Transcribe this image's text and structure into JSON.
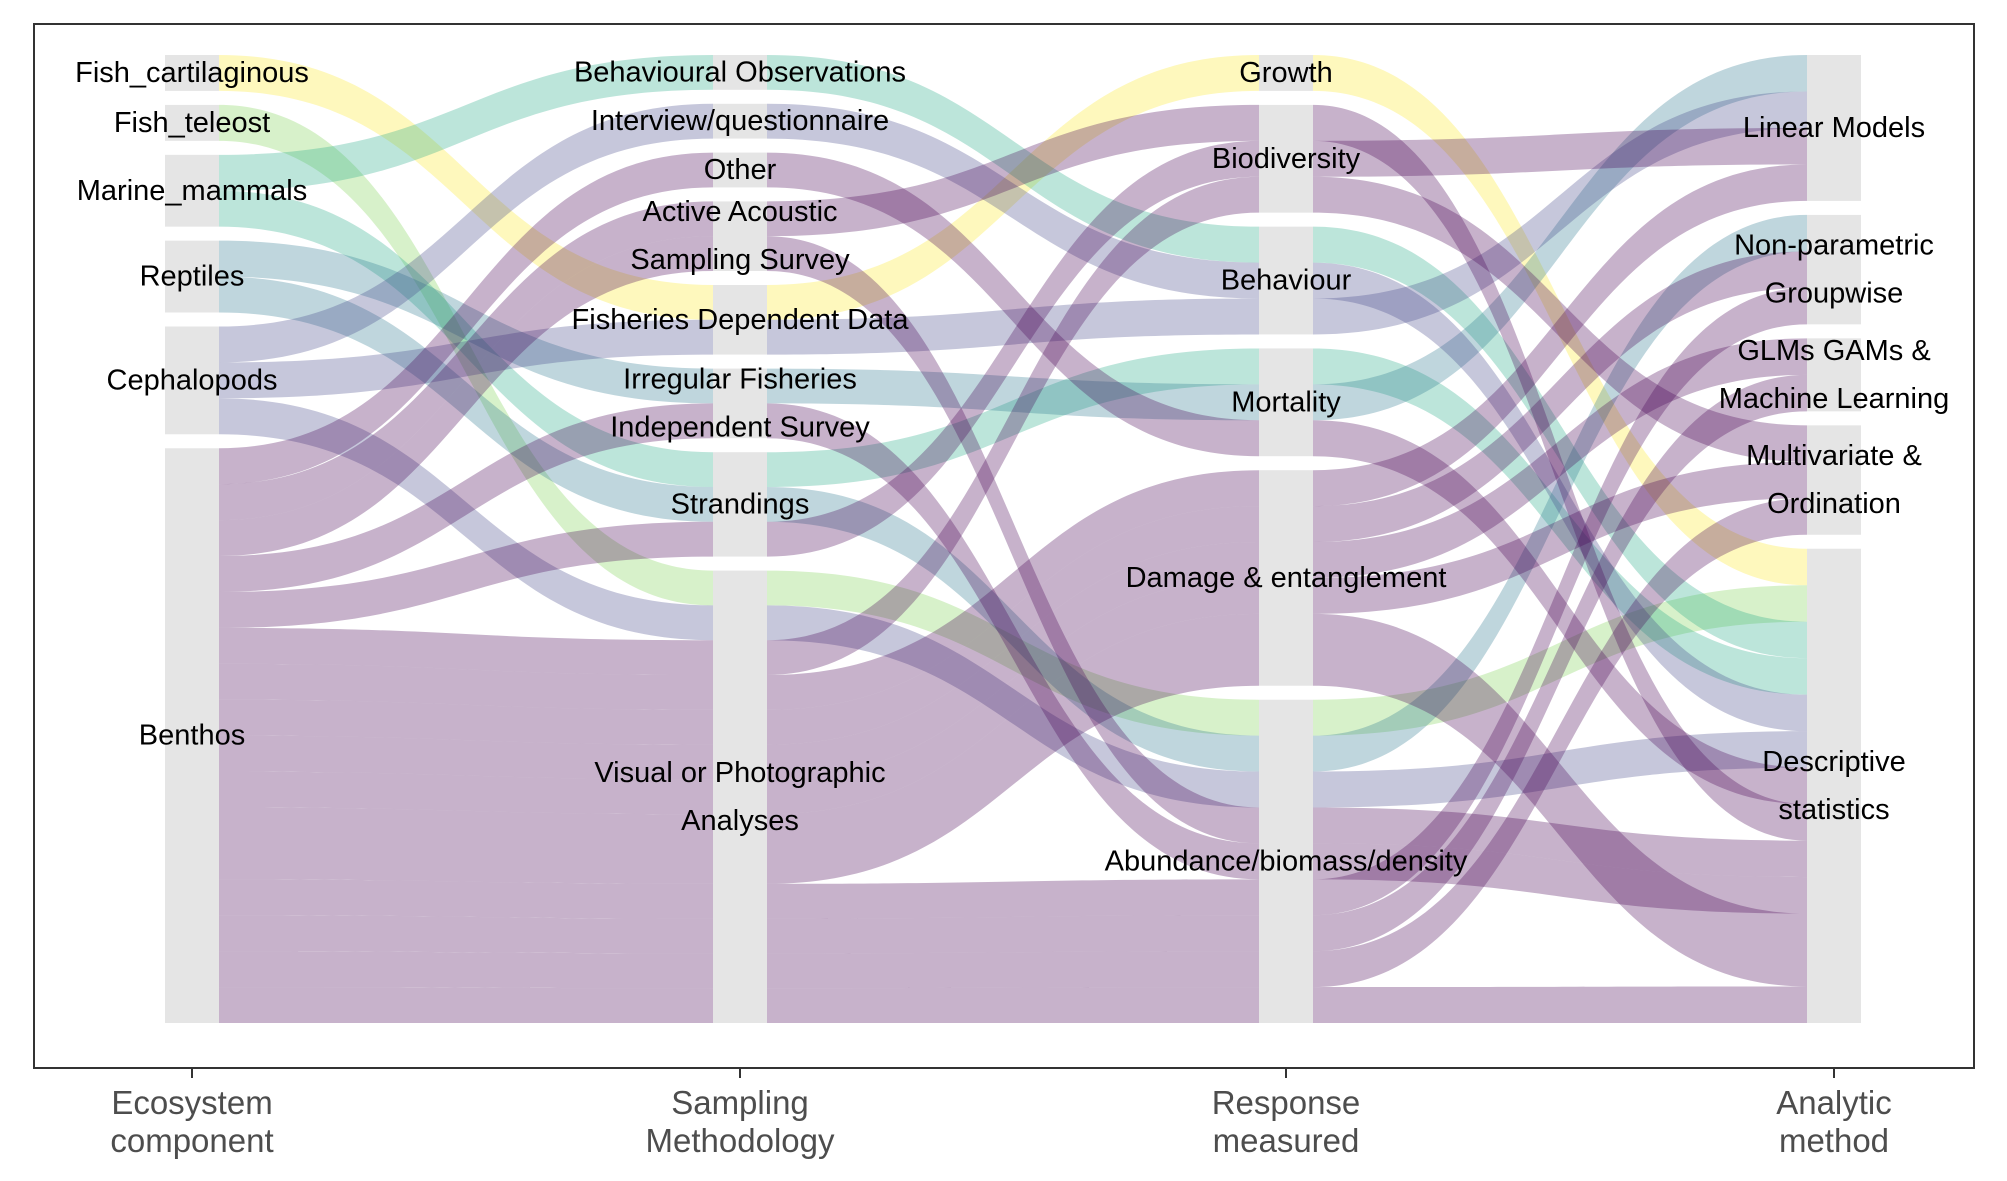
{
  "chart_data": {
    "type": "alluvial",
    "axes": [
      {
        "key": "ecosystem",
        "label": [
          "Ecosystem",
          "component"
        ]
      },
      {
        "key": "sampling",
        "label": [
          "Sampling",
          "Methodology"
        ]
      },
      {
        "key": "response",
        "label": [
          "Response",
          "measured"
        ]
      },
      {
        "key": "analytic",
        "label": [
          "Analytic",
          "method"
        ]
      }
    ],
    "strata": {
      "ecosystem": [
        {
          "id": "fc",
          "label": [
            "Fish_cartilaginous"
          ]
        },
        {
          "id": "ft",
          "label": [
            "Fish_teleost"
          ]
        },
        {
          "id": "mm",
          "label": [
            "Marine_mammals"
          ]
        },
        {
          "id": "rep",
          "label": [
            "Reptiles"
          ]
        },
        {
          "id": "ceph",
          "label": [
            "Cephalopods"
          ]
        },
        {
          "id": "ben",
          "label": [
            "Benthos"
          ]
        }
      ],
      "sampling": [
        {
          "id": "beh_obs",
          "label": [
            "Behavioural Observations"
          ]
        },
        {
          "id": "interview",
          "label": [
            "Interview/questionnaire"
          ]
        },
        {
          "id": "other",
          "label": [
            "Other"
          ]
        },
        {
          "id": "active",
          "label": [
            "Active Acoustic",
            "Sampling Survey"
          ]
        },
        {
          "id": "fdd",
          "label": [
            "Fisheries Dependent Data"
          ]
        },
        {
          "id": "irreg",
          "label": [
            "Irregular Fisheries",
            "Independent Survey"
          ]
        },
        {
          "id": "strand",
          "label": [
            "Strandings"
          ]
        },
        {
          "id": "visual",
          "label": [
            "Visual or Photographic",
            "Analyses"
          ]
        }
      ],
      "response": [
        {
          "id": "growth",
          "label": [
            "Growth"
          ]
        },
        {
          "id": "biodiv",
          "label": [
            "Biodiversity"
          ]
        },
        {
          "id": "behav",
          "label": [
            "Behaviour"
          ]
        },
        {
          "id": "mort",
          "label": [
            "Mortality"
          ]
        },
        {
          "id": "damage",
          "label": [
            "Damage & entanglement"
          ]
        },
        {
          "id": "abund",
          "label": [
            "Abundance/biomass/density"
          ]
        }
      ],
      "analytic": [
        {
          "id": "lm",
          "label": [
            "Linear Models"
          ]
        },
        {
          "id": "np",
          "label": [
            "Non-parametric",
            "Groupwise"
          ]
        },
        {
          "id": "glm",
          "label": [
            "GLMs GAMs &",
            "Machine Learning"
          ]
        },
        {
          "id": "mv",
          "label": [
            "Multivariate &",
            "Ordination"
          ]
        },
        {
          "id": "desc",
          "label": [
            "Descriptive",
            "statistics"
          ]
        }
      ]
    },
    "group_colors": {
      "fc": "#fde725",
      "ft": "#7ad151",
      "mm": "#22a884",
      "rep": "#2a788e",
      "ceph": "#414487",
      "ben": "#440154"
    },
    "flows": [
      {
        "group": "fc",
        "path": [
          "fc",
          "fdd",
          "growth",
          "desc"
        ],
        "value": 1
      },
      {
        "group": "ft",
        "path": [
          "ft",
          "visual",
          "abund",
          "desc"
        ],
        "value": 1
      },
      {
        "group": "mm",
        "path": [
          "mm",
          "beh_obs",
          "behav",
          "desc"
        ],
        "value": 1
      },
      {
        "group": "mm",
        "path": [
          "mm",
          "strand",
          "mort",
          "desc"
        ],
        "value": 1
      },
      {
        "group": "rep",
        "path": [
          "rep",
          "irreg",
          "mort",
          "lm"
        ],
        "value": 1
      },
      {
        "group": "rep",
        "path": [
          "rep",
          "strand",
          "abund",
          "np"
        ],
        "value": 1
      },
      {
        "group": "ceph",
        "path": [
          "ceph",
          "interview",
          "behav",
          "desc"
        ],
        "value": 1
      },
      {
        "group": "ceph",
        "path": [
          "ceph",
          "fdd",
          "behav",
          "lm"
        ],
        "value": 1
      },
      {
        "group": "ceph",
        "path": [
          "ceph",
          "visual",
          "abund",
          "desc"
        ],
        "value": 1
      },
      {
        "group": "ben",
        "path": [
          "ben",
          "other",
          "mort",
          "desc"
        ],
        "value": 1
      },
      {
        "group": "ben",
        "path": [
          "ben",
          "active",
          "abund",
          "desc"
        ],
        "value": 1
      },
      {
        "group": "ben",
        "path": [
          "ben",
          "active",
          "biodiv",
          "desc"
        ],
        "value": 1
      },
      {
        "group": "ben",
        "path": [
          "ben",
          "irreg",
          "abund",
          "desc"
        ],
        "value": 1
      },
      {
        "group": "ben",
        "path": [
          "ben",
          "strand",
          "biodiv",
          "lm"
        ],
        "value": 1
      },
      {
        "group": "ben",
        "path": [
          "ben",
          "visual",
          "biodiv",
          "mv"
        ],
        "value": 1
      },
      {
        "group": "ben",
        "path": [
          "ben",
          "visual",
          "damage",
          "np"
        ],
        "value": 1
      },
      {
        "group": "ben",
        "path": [
          "ben",
          "visual",
          "damage",
          "lm"
        ],
        "value": 1
      },
      {
        "group": "ben",
        "path": [
          "ben",
          "visual",
          "damage",
          "glm"
        ],
        "value": 1
      },
      {
        "group": "ben",
        "path": [
          "ben",
          "visual",
          "damage",
          "mv"
        ],
        "value": 1
      },
      {
        "group": "ben",
        "path": [
          "ben",
          "visual",
          "damage",
          "desc"
        ],
        "value": 2
      },
      {
        "group": "ben",
        "path": [
          "ben",
          "visual",
          "abund",
          "np"
        ],
        "value": 1
      },
      {
        "group": "ben",
        "path": [
          "ben",
          "visual",
          "abund",
          "glm"
        ],
        "value": 1
      },
      {
        "group": "ben",
        "path": [
          "ben",
          "visual",
          "abund",
          "mv"
        ],
        "value": 1
      },
      {
        "group": "ben",
        "path": [
          "ben",
          "visual",
          "abund",
          "desc"
        ],
        "value": 1
      }
    ]
  }
}
